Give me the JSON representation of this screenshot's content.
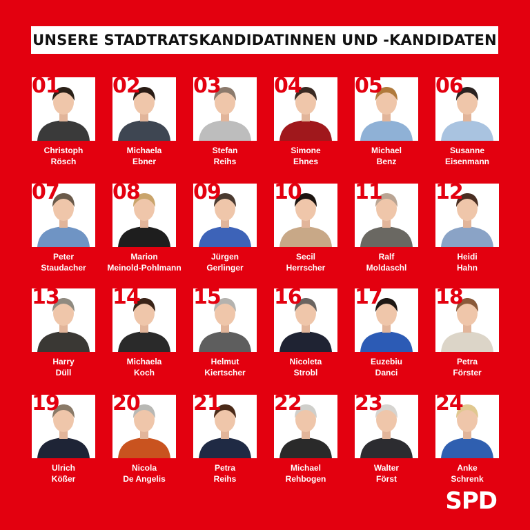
{
  "title": "UNSERE STADTRATSKANDIDATINNEN UND -KANDIDATEN",
  "logo": "SPD",
  "colors": {
    "background": "#e3000f",
    "white": "#ffffff"
  },
  "candidates": [
    {
      "num": "01",
      "first": "Christoph",
      "last": "Rösch",
      "shirt": "#3a3a3a",
      "hair": "#2b2118"
    },
    {
      "num": "02",
      "first": "Michaela",
      "last": "Ebner",
      "shirt": "#3e4652",
      "hair": "#2a1c15"
    },
    {
      "num": "03",
      "first": "Stefan",
      "last": "Reihs",
      "shirt": "#bdbdbd",
      "hair": "#8c7a6c"
    },
    {
      "num": "04",
      "first": "Simone",
      "last": "Ehnes",
      "shirt": "#a0181c",
      "hair": "#3a2a22"
    },
    {
      "num": "05",
      "first": "Michael",
      "last": "Benz",
      "shirt": "#8fb1d6",
      "hair": "#b07a3c"
    },
    {
      "num": "06",
      "first": "Susanne",
      "last": "Eisenmann",
      "shirt": "#a9c3e0",
      "hair": "#2a2220"
    },
    {
      "num": "07",
      "first": "Peter",
      "last": "Staudacher",
      "shirt": "#6f94c4",
      "hair": "#6a5a4a"
    },
    {
      "num": "08",
      "first": "Marion",
      "last": "Meinold-Pohlmann",
      "shirt": "#1e1e1e",
      "hair": "#c9a46b"
    },
    {
      "num": "09",
      "first": "Jürgen",
      "last": "Gerlinger",
      "shirt": "#3d63b8",
      "hair": "#4a3a30"
    },
    {
      "num": "10",
      "first": "Secil",
      "last": "Herrscher",
      "shirt": "#c8a887",
      "hair": "#1c1410"
    },
    {
      "num": "11",
      "first": "Ralf",
      "last": "Moldaschl",
      "shirt": "#6a6862",
      "hair": "#b9a493"
    },
    {
      "num": "12",
      "first": "Heidi",
      "last": "Hahn",
      "shirt": "#8aa3c6",
      "hair": "#4a2e22"
    },
    {
      "num": "13",
      "first": "Harry",
      "last": "Düll",
      "shirt": "#3a3834",
      "hair": "#8f8a80"
    },
    {
      "num": "14",
      "first": "Michaela",
      "last": "Koch",
      "shirt": "#2a2a2a",
      "hair": "#3a2418"
    },
    {
      "num": "15",
      "first": "Helmut",
      "last": "Kiertscher",
      "shirt": "#5e5e5e",
      "hair": "#b4b2ae"
    },
    {
      "num": "16",
      "first": "Nicoleta",
      "last": "Strobl",
      "shirt": "#1f2333",
      "hair": "#6a6460"
    },
    {
      "num": "17",
      "first": "Euzebiu",
      "last": "Danci",
      "shirt": "#2c5bb5",
      "hair": "#1e1814"
    },
    {
      "num": "18",
      "first": "Petra",
      "last": "Förster",
      "shirt": "#dcd5c8",
      "hair": "#8a5a3a"
    },
    {
      "num": "19",
      "first": "Ulrich",
      "last": "Kößer",
      "shirt": "#1e2436",
      "hair": "#8a7a68"
    },
    {
      "num": "20",
      "first": "Nicola",
      "last": "De Angelis",
      "shirt": "#c9531f",
      "hair": "#b8b8b4"
    },
    {
      "num": "21",
      "first": "Petra",
      "last": "Reihs",
      "shirt": "#1f2a44",
      "hair": "#4a2a18"
    },
    {
      "num": "22",
      "first": "Michael",
      "last": "Rehbogen",
      "shirt": "#2a2a2a",
      "hair": "#cfcfcb"
    },
    {
      "num": "23",
      "first": "Walter",
      "last": "Först",
      "shirt": "#2c2c30",
      "hair": "#d6d4d0"
    },
    {
      "num": "24",
      "first": "Anke",
      "last": "Schrenk",
      "shirt": "#2f5fb0",
      "hair": "#e0c890"
    }
  ]
}
